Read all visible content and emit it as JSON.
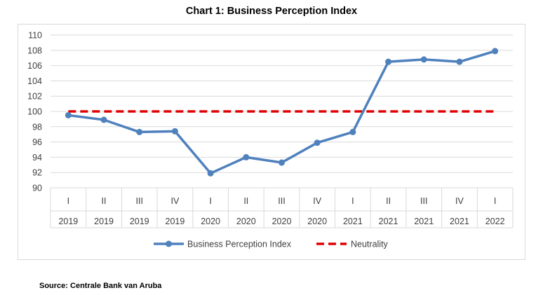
{
  "chart_data": {
    "type": "line",
    "title": "Chart 1: Business Perception Index",
    "categories": [
      {
        "quarter": "I",
        "year": "2019"
      },
      {
        "quarter": "II",
        "year": "2019"
      },
      {
        "quarter": "III",
        "year": "2019"
      },
      {
        "quarter": "IV",
        "year": "2019"
      },
      {
        "quarter": "I",
        "year": "2020"
      },
      {
        "quarter": "II",
        "year": "2020"
      },
      {
        "quarter": "III",
        "year": "2020"
      },
      {
        "quarter": "IV",
        "year": "2020"
      },
      {
        "quarter": "I",
        "year": "2021"
      },
      {
        "quarter": "II",
        "year": "2021"
      },
      {
        "quarter": "III",
        "year": "2021"
      },
      {
        "quarter": "IV",
        "year": "2021"
      },
      {
        "quarter": "I",
        "year": "2022"
      }
    ],
    "series": [
      {
        "name": "Business Perception Index",
        "color": "#4f81bd",
        "style": "solid-marker",
        "values": [
          99.5,
          98.9,
          97.3,
          97.4,
          91.9,
          94.0,
          93.3,
          95.9,
          97.3,
          106.5,
          106.8,
          106.5,
          107.9
        ]
      },
      {
        "name": "Neutrality",
        "color": "#e00000",
        "style": "dashed",
        "values": [
          100,
          100,
          100,
          100,
          100,
          100,
          100,
          100,
          100,
          100,
          100,
          100,
          100
        ]
      }
    ],
    "ylim": [
      90,
      110
    ],
    "yticks": [
      "90",
      "92",
      "94",
      "96",
      "98",
      "100",
      "102",
      "104",
      "106",
      "108",
      "110"
    ],
    "grid": true,
    "legend_position": "bottom"
  },
  "source": "Source: Centrale Bank van Aruba"
}
